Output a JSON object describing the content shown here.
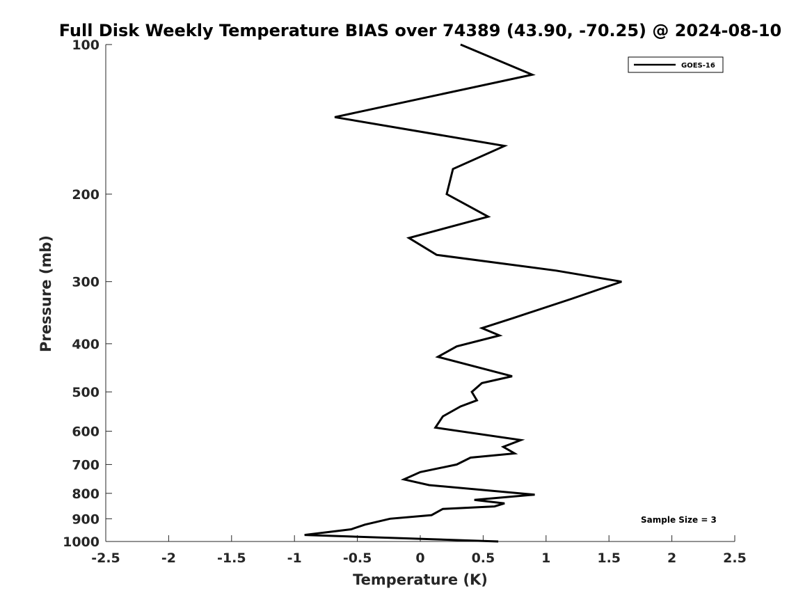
{
  "chart_data": {
    "type": "line",
    "title": "Full Disk Weekly Temperature BIAS over 74389 (43.90, -70.25) @ 2024-08-10",
    "xlabel": "Temperature (K)",
    "ylabel": "Pressure (mb)",
    "xlim": [
      -2.5,
      2.5
    ],
    "ylim": [
      1000,
      100
    ],
    "yscale": "log",
    "y_reversed": true,
    "x_ticks": [
      -2.5,
      -2,
      -1.5,
      -1,
      -0.5,
      0,
      0.5,
      1,
      1.5,
      2,
      2.5
    ],
    "x_tick_labels": [
      "-2.5",
      "-2",
      "-1.5",
      "-1",
      "-0.5",
      "0",
      "0.5",
      "1",
      "1.5",
      "2",
      "2.5"
    ],
    "y_ticks": [
      100,
      200,
      300,
      400,
      500,
      600,
      700,
      800,
      900,
      1000
    ],
    "y_tick_labels": [
      "100",
      "200",
      "300",
      "400",
      "500",
      "600",
      "700",
      "800",
      "900",
      "1000"
    ],
    "grid": false,
    "legend_position": "top-right",
    "series": [
      {
        "name": "GOES-16",
        "color": "#000000",
        "x": [
          0.32,
          0.89,
          -0.68,
          0.67,
          0.26,
          0.21,
          0.54,
          -0.09,
          0.13,
          1.08,
          1.6,
          1.2,
          0.74,
          0.49,
          0.63,
          0.29,
          0.14,
          0.73,
          0.49,
          0.41,
          0.45,
          0.32,
          0.18,
          0.12,
          0.8,
          0.66,
          0.75,
          0.4,
          0.29,
          0.0,
          -0.13,
          0.07,
          0.91,
          0.43,
          0.67,
          0.59,
          0.18,
          0.09,
          -0.24,
          -0.44,
          -0.55,
          -0.92,
          0.62
        ],
        "y": [
          100,
          115,
          140,
          160,
          178,
          200,
          222,
          245,
          265,
          285,
          300,
          325,
          355,
          372,
          385,
          405,
          425,
          465,
          480,
          500,
          520,
          535,
          560,
          590,
          625,
          645,
          665,
          678,
          700,
          725,
          750,
          770,
          805,
          825,
          838,
          850,
          860,
          885,
          900,
          925,
          945,
          970,
          1000
        ]
      }
    ],
    "annotations": [
      {
        "text": "Sample Size = 3",
        "position": "bottom-right"
      }
    ]
  }
}
